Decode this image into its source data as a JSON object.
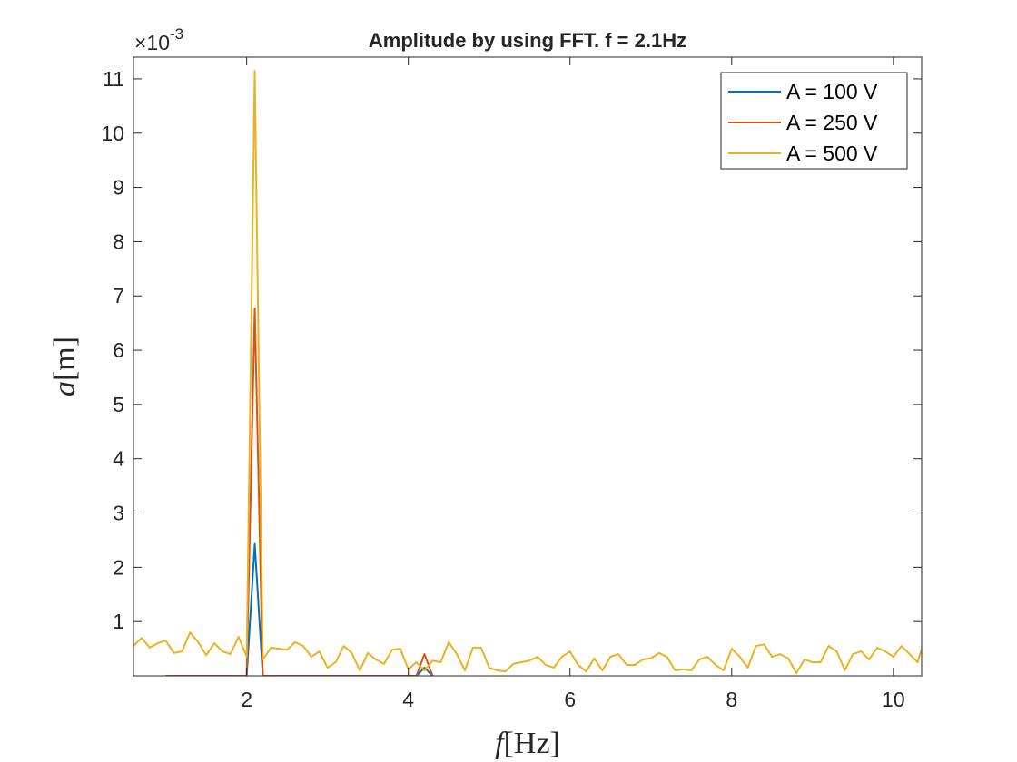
{
  "chart_data": {
    "type": "line",
    "title": "Amplitude by using FFT. f = 2.1Hz",
    "xlabel_var": "f",
    "xlabel_unit": "[Hz]",
    "ylabel_var": "a",
    "ylabel_unit": "[m]",
    "y_exponent_base": "×10",
    "y_exponent_power": "-3",
    "xlim": [
      0.6,
      10.35
    ],
    "ylim": [
      0.0,
      0.0114
    ],
    "x_ticks": [
      2,
      4,
      6,
      8,
      10
    ],
    "x_tick_labels": [
      "2",
      "4",
      "6",
      "8",
      "10"
    ],
    "y_ticks": [
      0.001,
      0.002,
      0.003,
      0.004,
      0.005,
      0.006,
      0.007,
      0.008,
      0.009,
      0.01,
      0.011
    ],
    "y_tick_labels": [
      "1",
      "2",
      "3",
      "4",
      "5",
      "6",
      "7",
      "8",
      "9",
      "10",
      "11"
    ],
    "grid": false,
    "legend_position": "top-right",
    "series": [
      {
        "name": "A = 100 V",
        "color": "#0072BD",
        "x": [
          2.0,
          2.1,
          2.2,
          2.3,
          2.4,
          4.1,
          4.2,
          4.3
        ],
        "y": [
          0.0,
          0.00243,
          0.0,
          0.0,
          0.0,
          0.0,
          0.00015,
          0.0
        ]
      },
      {
        "name": "A = 250 V",
        "color": "#D95319",
        "x": [
          1.0,
          1.1,
          1.2,
          2.0,
          2.1,
          2.2,
          4.1,
          4.2,
          4.3
        ],
        "y": [
          0.0,
          0.0,
          0.0,
          0.0,
          0.00677,
          0.0,
          0.0,
          0.0004,
          0.0
        ]
      },
      {
        "name": "A = 500 V",
        "color": "#EDB120",
        "x": [
          0.6,
          0.7,
          0.8,
          0.9,
          1.0,
          1.1,
          1.2,
          1.3,
          1.4,
          1.5,
          1.6,
          1.7,
          1.8,
          1.9,
          2.0,
          2.1,
          2.2,
          2.3,
          2.4,
          2.5,
          2.6,
          2.7,
          2.8,
          2.9,
          3.0,
          3.1,
          3.2,
          3.3,
          3.4,
          3.5,
          3.6,
          3.7,
          3.8,
          3.9,
          4.0,
          4.1,
          4.2,
          4.3,
          4.4,
          4.5,
          4.6,
          4.7,
          4.8,
          4.9,
          5.0,
          5.1,
          5.2,
          5.3,
          5.4,
          5.5,
          5.6,
          5.7,
          5.8,
          5.9,
          6.0,
          6.1,
          6.2,
          6.3,
          6.4,
          6.5,
          6.6,
          6.7,
          6.8,
          6.9,
          7.0,
          7.1,
          7.2,
          7.3,
          7.4,
          7.5,
          7.6,
          7.7,
          7.8,
          7.9,
          8.0,
          8.1,
          8.2,
          8.3,
          8.4,
          8.5,
          8.6,
          8.7,
          8.8,
          8.9,
          9.0,
          9.1,
          9.2,
          9.3,
          9.4,
          9.5,
          9.6,
          9.7,
          9.8,
          9.9,
          10.0,
          10.1,
          10.2,
          10.3,
          10.35
        ],
        "y": [
          0.00055,
          0.0007,
          0.00052,
          0.0006,
          0.00065,
          0.00042,
          0.00045,
          0.0008,
          0.00062,
          0.00038,
          0.0006,
          0.00045,
          0.0004,
          0.00072,
          0.00035,
          0.01115,
          0.0003,
          0.00052,
          0.0005,
          0.00048,
          0.00062,
          0.00055,
          0.00035,
          0.00045,
          0.00015,
          0.00025,
          0.00055,
          0.00042,
          0.0001,
          0.00042,
          0.0003,
          0.00022,
          0.00048,
          0.0005,
          0.00012,
          0.00025,
          0.0001,
          0.00028,
          0.00025,
          0.00062,
          0.0004,
          0.0001,
          0.00052,
          0.00052,
          0.00015,
          0.0001,
          8e-05,
          0.00022,
          0.00025,
          0.00028,
          0.00035,
          0.0002,
          0.00015,
          0.00035,
          0.00045,
          0.0002,
          8e-05,
          0.00032,
          0.0001,
          0.00035,
          0.0004,
          0.0002,
          0.0002,
          0.0003,
          0.00032,
          0.00042,
          0.00035,
          0.0001,
          0.00012,
          0.0001,
          0.0003,
          0.00035,
          0.0002,
          0.0001,
          0.0005,
          0.00035,
          0.00015,
          0.00055,
          0.00058,
          0.00035,
          0.0004,
          0.00032,
          5e-05,
          0.0003,
          0.00025,
          0.00025,
          0.00055,
          0.00045,
          0.0001,
          0.0004,
          0.00045,
          0.0003,
          0.00052,
          0.00045,
          0.00035,
          0.00055,
          0.0004,
          0.00025,
          0.0005
        ]
      }
    ]
  }
}
